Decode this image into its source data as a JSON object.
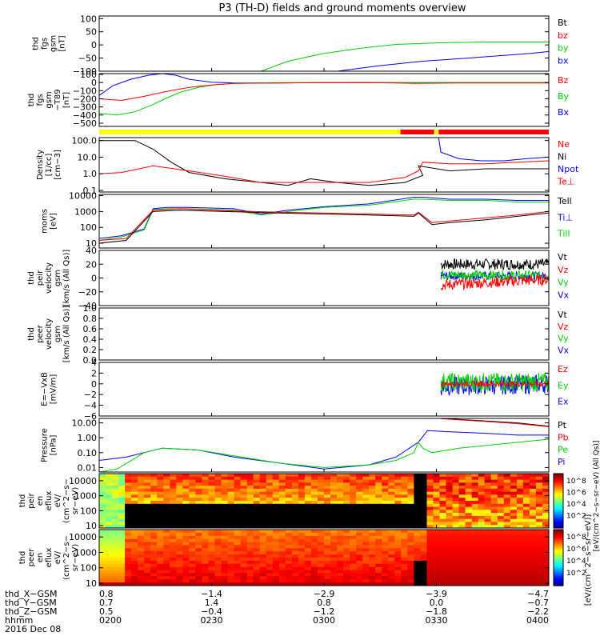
{
  "title": "P3 (TH-D) fields and ground moments overview",
  "colors": {
    "black": "#000000",
    "red": "#ff0000",
    "green": "#00d000",
    "blue": "#0000ff",
    "yellow": "#ffff00"
  },
  "chart_data": [
    {
      "type": "line",
      "name": "fgs-gsm",
      "ylabel": [
        "thd",
        "fgs",
        "gsm",
        "[nT]"
      ],
      "ylim": [
        -100,
        110
      ],
      "ticks": [
        "100",
        "50",
        "0",
        "−50",
        "−100"
      ],
      "tick_values": [
        100,
        50,
        0,
        -50,
        -100
      ],
      "legend": [
        {
          "text": "Bt",
          "color": "black"
        },
        {
          "text": "bz",
          "color": "red"
        },
        {
          "text": "by",
          "color": "green"
        },
        {
          "text": "bx",
          "color": "blue"
        }
      ],
      "series": [
        {
          "name": "by",
          "color": "green",
          "x": [
            0.36,
            0.42,
            0.5,
            0.58,
            0.66,
            0.76,
            0.86,
            0.95,
            1.0
          ],
          "y": [
            -100,
            -62,
            -32,
            -13,
            2,
            8,
            11,
            11,
            11
          ]
        },
        {
          "name": "bx",
          "color": "blue",
          "x": [
            0.53,
            0.62,
            0.72,
            0.82,
            0.9,
            0.96,
            1.0
          ],
          "y": [
            -100,
            -80,
            -62,
            -50,
            -40,
            -32,
            -25
          ]
        }
      ]
    },
    {
      "type": "line",
      "name": "fgs-gsm-t89",
      "ylabel": [
        "thd",
        "fgs",
        "gsm",
        "−T89",
        "[nT]"
      ],
      "ylim": [
        -540,
        110
      ],
      "ticks": [
        "100",
        "0",
        "−100",
        "−200",
        "−300",
        "−400",
        "−500"
      ],
      "tick_values": [
        100,
        0,
        -100,
        -200,
        -300,
        -400,
        -500
      ],
      "legend": [
        {
          "text": "Bz",
          "color": "red"
        },
        {
          "text": "By",
          "color": "green"
        },
        {
          "text": "Bx",
          "color": "blue"
        }
      ],
      "series": [
        {
          "name": "Bx",
          "color": "blue",
          "x": [
            0,
            0.03,
            0.07,
            0.11,
            0.14,
            0.17,
            0.2,
            0.25,
            0.3,
            0.4,
            0.5,
            0.7,
            1.0
          ],
          "y": [
            -160,
            -40,
            40,
            90,
            110,
            90,
            40,
            5,
            -5,
            -5,
            0,
            0,
            0
          ]
        },
        {
          "name": "By",
          "color": "green",
          "x": [
            0,
            0.04,
            0.08,
            0.12,
            0.15,
            0.18,
            0.22,
            0.26,
            0.3,
            0.4,
            1.0
          ],
          "y": [
            -380,
            -400,
            -360,
            -270,
            -190,
            -120,
            -60,
            -25,
            -10,
            0,
            0
          ]
        },
        {
          "name": "Bz",
          "color": "red",
          "x": [
            0,
            0.05,
            0.1,
            0.15,
            0.2,
            0.25,
            0.3,
            0.4,
            0.6,
            0.7,
            0.8,
            1.0
          ],
          "y": [
            -200,
            -220,
            -170,
            -110,
            -60,
            -30,
            -10,
            -5,
            0,
            -10,
            -5,
            -5
          ]
        }
      ]
    },
    {
      "type": "line",
      "name": "density",
      "ylabel": [
        "Density",
        "[1/cc]",
        "[cm−3]"
      ],
      "log": true,
      "ylim": [
        0.08,
        150
      ],
      "ticks": [
        "100.0",
        "10.0",
        "1.0",
        "0.1"
      ],
      "tick_values": [
        100,
        10,
        1,
        0.1
      ],
      "legend": [
        {
          "text": "Ne",
          "color": "red"
        },
        {
          "text": "Ni",
          "color": "black"
        },
        {
          "text": "Npot",
          "color": "blue"
        },
        {
          "text": "Te⊥",
          "color": "red"
        }
      ],
      "series": [
        {
          "name": "Ni",
          "color": "black",
          "x": [
            0,
            0.08,
            0.12,
            0.16,
            0.2,
            0.28,
            0.36,
            0.42,
            0.47,
            0.53,
            0.6,
            0.68,
            0.72,
            0.71,
            0.78,
            0.86,
            0.93,
            1.0
          ],
          "y": [
            100,
            100,
            30,
            5,
            1.2,
            0.5,
            0.3,
            0.2,
            0.5,
            0.3,
            0.2,
            0.3,
            0.8,
            3,
            1.5,
            2,
            2,
            2
          ]
        },
        {
          "name": "Ne",
          "color": "red",
          "x": [
            0,
            0.05,
            0.12,
            0.2,
            0.28,
            0.36,
            0.44,
            0.52,
            0.6,
            0.68,
            0.71,
            0.72,
            0.78,
            0.86,
            0.93,
            1.0
          ],
          "y": [
            1,
            1.2,
            3,
            1.5,
            0.7,
            0.3,
            0.3,
            0.3,
            0.3,
            0.6,
            1.5,
            5,
            4,
            4,
            5,
            6
          ]
        },
        {
          "name": "Npot",
          "color": "blue",
          "x": [
            0.755,
            0.76,
            0.8,
            0.85,
            0.9,
            0.95,
            1.0
          ],
          "y": [
            150,
            20,
            8,
            6,
            6,
            8,
            10
          ]
        }
      ]
    },
    {
      "type": "line",
      "name": "moms-temp",
      "ylabel": [
        "moms",
        "[eV]"
      ],
      "log": true,
      "ylim": [
        5,
        12000
      ],
      "ticks": [
        "10000",
        "1000",
        "100",
        "10"
      ],
      "tick_values": [
        10000,
        1000,
        100,
        10
      ],
      "legend": [
        {
          "text": "Tell",
          "color": "black"
        },
        {
          "text": "Ti⊥",
          "color": "blue"
        },
        {
          "text": "Till",
          "color": "green"
        }
      ],
      "series": [
        {
          "name": "Ti",
          "color": "blue",
          "x": [
            0,
            0.05,
            0.1,
            0.12,
            0.15,
            0.2,
            0.3,
            0.36,
            0.42,
            0.5,
            0.6,
            0.7,
            0.72,
            0.78,
            0.86,
            0.93,
            1.0
          ],
          "y": [
            20,
            30,
            80,
            1500,
            1800,
            1800,
            1500,
            700,
            1200,
            2000,
            3000,
            8000,
            8000,
            6000,
            6000,
            5000,
            5000
          ]
        },
        {
          "name": "Till",
          "color": "green",
          "x": [
            0,
            0.05,
            0.1,
            0.12,
            0.15,
            0.2,
            0.3,
            0.36,
            0.42,
            0.5,
            0.6,
            0.7,
            0.72,
            0.78,
            0.86,
            0.93,
            1.0
          ],
          "y": [
            15,
            25,
            70,
            1300,
            1500,
            1500,
            1200,
            600,
            1000,
            1800,
            2500,
            6000,
            6000,
            5000,
            5000,
            4000,
            4000
          ]
        },
        {
          "name": "Tell",
          "color": "black",
          "x": [
            0,
            0.06,
            0.12,
            0.18,
            0.28,
            0.4,
            0.5,
            0.6,
            0.7,
            0.71,
            0.74,
            0.78,
            0.86,
            0.93,
            1.0
          ],
          "y": [
            10,
            15,
            1000,
            1200,
            1000,
            800,
            700,
            600,
            500,
            800,
            150,
            200,
            300,
            500,
            800
          ]
        },
        {
          "name": "Te",
          "color": "red",
          "x": [
            0,
            0.06,
            0.12,
            0.18,
            0.3,
            0.4,
            0.5,
            0.6,
            0.7,
            0.71,
            0.74,
            0.78,
            0.86,
            0.93,
            1.0
          ],
          "y": [
            15,
            20,
            1200,
            1500,
            1100,
            900,
            800,
            700,
            600,
            900,
            200,
            250,
            400,
            600,
            1000
          ]
        }
      ]
    },
    {
      "type": "line",
      "name": "peir-velocity",
      "ylabel": [
        "thd",
        "peir",
        "velocity",
        "gsm",
        "[km/s (All Qs)]"
      ],
      "ylim": [
        -40,
        40
      ],
      "ticks": [
        "40",
        "20",
        "0",
        "−20",
        "−40"
      ],
      "tick_values": [
        40,
        20,
        0,
        -20,
        -40
      ],
      "legend": [
        {
          "text": "Vt",
          "color": "black"
        },
        {
          "text": "Vz",
          "color": "red"
        },
        {
          "text": "Vy",
          "color": "green"
        },
        {
          "text": "Vx",
          "color": "blue"
        }
      ],
      "series": [
        {
          "name": "Vt",
          "color": "black",
          "x": [
            0.76,
            1.0
          ],
          "y": [
            20,
            20
          ],
          "noise": 8
        },
        {
          "name": "Vx",
          "color": "blue",
          "x": [
            0.76,
            1.0
          ],
          "y": [
            3,
            3
          ],
          "noise": 6
        },
        {
          "name": "Vy",
          "color": "green",
          "x": [
            0.76,
            1.0
          ],
          "y": [
            5,
            3
          ],
          "noise": 7
        },
        {
          "name": "Vz",
          "color": "red",
          "x": [
            0.76,
            1.0
          ],
          "y": [
            -10,
            -2
          ],
          "noise": 8
        }
      ]
    },
    {
      "type": "line",
      "name": "peer-velocity",
      "ylabel": [
        "thd",
        "peer",
        "velocity",
        "gsm",
        "[km/s (All Qs)]"
      ],
      "ylim": [
        0,
        1
      ],
      "ticks": [
        "1.0",
        "0.8",
        "0.6",
        "0.4",
        "0.2",
        "0.0"
      ],
      "tick_values": [
        1,
        0.8,
        0.6,
        0.4,
        0.2,
        0
      ],
      "legend": [
        {
          "text": "Vt",
          "color": "black"
        },
        {
          "text": "Vz",
          "color": "red"
        },
        {
          "text": "Vy",
          "color": "green"
        },
        {
          "text": "Vx",
          "color": "blue"
        }
      ],
      "series": []
    },
    {
      "type": "line",
      "name": "e-field",
      "ylabel": [
        "E=−VxB",
        "[mV/m]"
      ],
      "ylim": [
        -6,
        4
      ],
      "ticks": [
        "4",
        "2",
        "0",
        "−2",
        "−4",
        "−6"
      ],
      "tick_values": [
        4,
        2,
        0,
        -2,
        -4,
        -6
      ],
      "legend": [
        {
          "text": "Ez",
          "color": "red"
        },
        {
          "text": "Ey",
          "color": "green"
        },
        {
          "text": "Ex",
          "color": "blue"
        }
      ],
      "series": [
        {
          "name": "Ex",
          "color": "blue",
          "x": [
            0.76,
            1.0
          ],
          "y": [
            -0.5,
            0
          ],
          "noise": 1.8
        },
        {
          "name": "Ey",
          "color": "green",
          "x": [
            0.76,
            1.0
          ],
          "y": [
            0.3,
            0.3
          ],
          "noise": 1.8
        },
        {
          "name": "Ez",
          "color": "red",
          "x": [
            0.76,
            1.0
          ],
          "y": [
            0,
            0
          ],
          "noise": 0.5
        }
      ]
    },
    {
      "type": "line",
      "name": "pressure",
      "ylabel": [
        "Pressure",
        "[nPa]"
      ],
      "log": true,
      "ylim": [
        0.005,
        20
      ],
      "ticks": [
        "10.00",
        "1.00",
        "0.10",
        "0.01"
      ],
      "tick_values": [
        10,
        1,
        0.1,
        0.01
      ],
      "legend": [
        {
          "text": "Pt",
          "color": "black"
        },
        {
          "text": "Pb",
          "color": "red"
        },
        {
          "text": "Pe",
          "color": "green"
        },
        {
          "text": "Pi",
          "color": "blue"
        }
      ],
      "series": [
        {
          "name": "Pi",
          "color": "blue",
          "x": [
            0,
            0.06,
            0.14,
            0.22,
            0.3,
            0.4,
            0.5,
            0.6,
            0.66,
            0.71,
            0.73,
            0.78,
            0.86,
            0.93,
            1.0
          ],
          "y": [
            0.03,
            0.05,
            0.2,
            0.15,
            0.05,
            0.02,
            0.008,
            0.015,
            0.05,
            0.5,
            3,
            2.5,
            2,
            1.5,
            1.5
          ]
        },
        {
          "name": "Pe",
          "color": "green",
          "x": [
            0,
            0.04,
            0.1,
            0.14,
            0.22,
            0.3,
            0.4,
            0.5,
            0.6,
            0.66,
            0.7,
            0.71,
            0.72,
            0.74,
            0.8,
            0.9,
            1.0
          ],
          "y": [
            0.005,
            0.008,
            0.1,
            0.2,
            0.15,
            0.06,
            0.02,
            0.01,
            0.015,
            0.03,
            0.1,
            0.5,
            0.2,
            0.1,
            0.2,
            0.4,
            0.8
          ]
        },
        {
          "name": "Pt",
          "color": "black",
          "x": [
            0.76,
            0.85,
            0.93,
            1.0
          ],
          "y": [
            20,
            14,
            10,
            6
          ]
        },
        {
          "name": "Pb",
          "color": "red",
          "x": [
            0.76,
            0.85,
            0.93,
            1.0
          ],
          "y": [
            19,
            13,
            9,
            5.5
          ]
        }
      ]
    },
    {
      "type": "heatmap",
      "name": "peir-eflux",
      "ylabel": [
        "thd",
        "peir",
        "en",
        "eflux",
        "eV/",
        "(cm^2−s−",
        "sr−eV)"
      ],
      "log": true,
      "ylim": [
        7,
        30000
      ],
      "ticks": [
        "10000",
        "1000",
        "100",
        "10"
      ],
      "tick_values": [
        10000,
        1000,
        100,
        10
      ]
    },
    {
      "type": "heatmap",
      "name": "peer-eflux",
      "ylabel": [
        "thd",
        "peer",
        "en",
        "eflux",
        "eV/",
        "(cm^2−s−",
        "sr−eV)"
      ],
      "log": true,
      "ylim": [
        7,
        30000
      ],
      "ticks": [
        "10000",
        "1000",
        "100",
        "10"
      ],
      "tick_values": [
        10000,
        1000,
        100,
        10
      ]
    }
  ],
  "colorbar": {
    "ticks": [
      "10^8",
      "10^6",
      "10^4",
      "10^2"
    ],
    "label": "[eV/(cm^2−s−sr−eV)]",
    "label2": "[eV/(cm^2−s−sr−eV) (All Qs)]"
  },
  "footer": {
    "rows": [
      {
        "label": "thd_X−GSM",
        "values": [
          "0.8",
          "−1.4",
          "−2.9",
          "−3.9",
          "−4.7"
        ]
      },
      {
        "label": "thd_Y−GSM",
        "values": [
          "0.7",
          "1.4",
          "0.8",
          "0.0",
          "−0.7"
        ]
      },
      {
        "label": "thd_Z−GSM",
        "values": [
          "0.5",
          "−0.4",
          "−1.2",
          "−1.8",
          "−2.2"
        ]
      },
      {
        "label": "hhmm",
        "values": [
          "0200",
          "0230",
          "0300",
          "0330",
          "0400"
        ]
      }
    ],
    "date": "2016 Dec 08"
  }
}
